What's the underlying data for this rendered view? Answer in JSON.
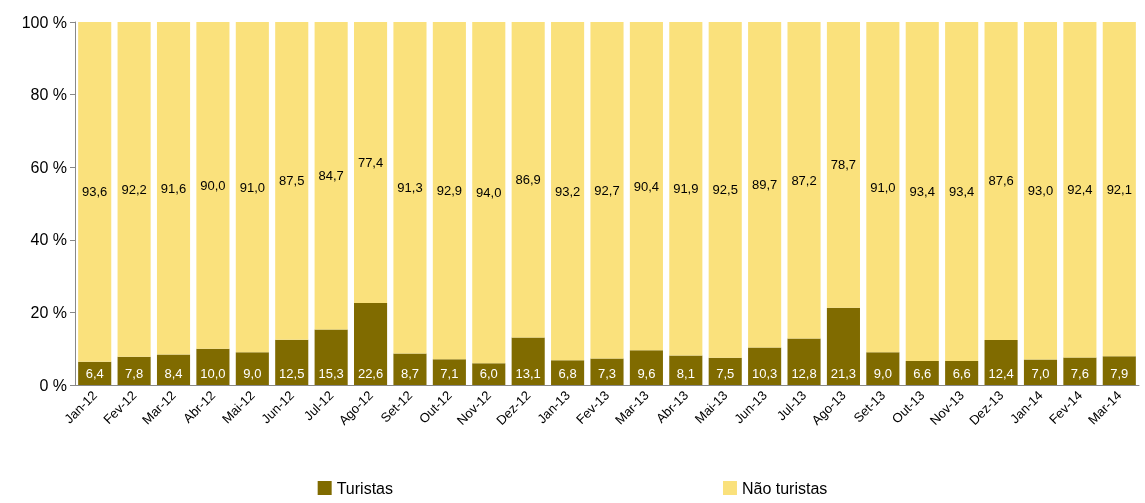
{
  "chart_data": {
    "type": "bar",
    "stacked": true,
    "categories": [
      "Jan-12",
      "Fev-12",
      "Mar-12",
      "Abr-12",
      "Mai-12",
      "Jun-12",
      "Jul-12",
      "Ago-12",
      "Set-12",
      "Out-12",
      "Nov-12",
      "Dez-12",
      "Jan-13",
      "Fev-13",
      "Mar-13",
      "Abr-13",
      "Mai-13",
      "Jun-13",
      "Jul-13",
      "Ago-13",
      "Set-13",
      "Out-13",
      "Nov-13",
      "Dez-13",
      "Jan-14",
      "Fev-14",
      "Mar-14"
    ],
    "series": [
      {
        "name": "Turistas",
        "color": "#806b00",
        "values": [
          6.4,
          7.8,
          8.4,
          10.0,
          9.0,
          12.5,
          15.3,
          22.6,
          8.7,
          7.1,
          6.0,
          13.1,
          6.8,
          7.3,
          9.6,
          8.1,
          7.5,
          10.3,
          12.8,
          21.3,
          9.0,
          6.6,
          6.6,
          12.4,
          7.0,
          7.6,
          7.9
        ],
        "value_labels": [
          "6,4",
          "7,8",
          "8,4",
          "10,0",
          "9,0",
          "12,5",
          "15,3",
          "22,6",
          "8,7",
          "7,1",
          "6,0",
          "13,1",
          "6,8",
          "7,3",
          "9,6",
          "8,1",
          "7,5",
          "10,3",
          "12,8",
          "21,3",
          "9,0",
          "6,6",
          "6,6",
          "12,4",
          "7,0",
          "7,6",
          "7,9"
        ]
      },
      {
        "name": "Não turistas",
        "color": "#fae17c",
        "values": [
          93.6,
          92.2,
          91.6,
          90.0,
          91.0,
          87.5,
          84.7,
          77.4,
          91.3,
          92.9,
          94.0,
          86.9,
          93.2,
          92.7,
          90.4,
          91.9,
          92.5,
          89.7,
          87.2,
          78.7,
          91.0,
          93.4,
          93.4,
          87.6,
          93.0,
          92.4,
          92.1
        ],
        "value_labels": [
          "93,6",
          "92,2",
          "91,6",
          "90,0",
          "91,0",
          "87,5",
          "84,7",
          "77,4",
          "91,3",
          "92,9",
          "94,0",
          "86,9",
          "93,2",
          "92,7",
          "90,4",
          "91,9",
          "92,5",
          "89,7",
          "87,2",
          "78,7",
          "91,0",
          "93,4",
          "93,4",
          "87,6",
          "93,0",
          "92,4",
          "92,1"
        ]
      }
    ],
    "ylim": [
      0,
      100
    ],
    "yticks": [
      {
        "value": 0,
        "label": "0 %"
      },
      {
        "value": 20,
        "label": "20 %"
      },
      {
        "value": 40,
        "label": "40 %"
      },
      {
        "value": 60,
        "label": "60 %"
      },
      {
        "value": 80,
        "label": "80 %"
      },
      {
        "value": 100,
        "label": "100 %"
      }
    ],
    "grid": false,
    "legend": "bottom"
  }
}
